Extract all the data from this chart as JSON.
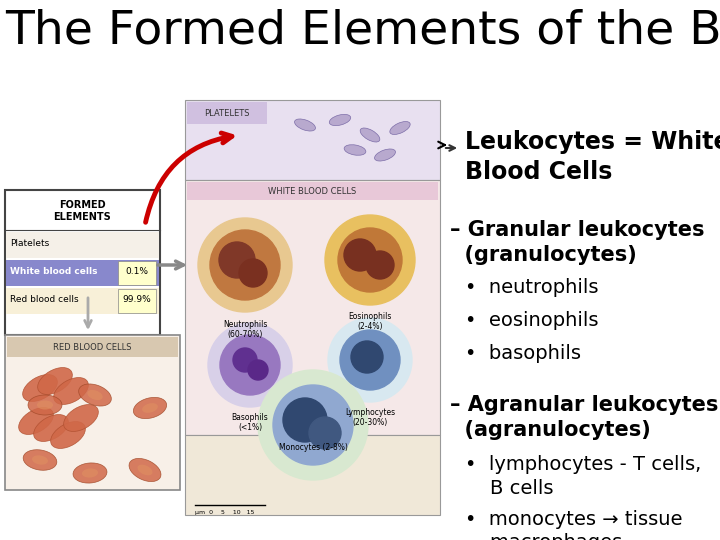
{
  "title": "The Formed Elements of the Blood:",
  "title_fontsize": 34,
  "bg_color": "#ffffff",
  "text_color": "#000000",
  "leuko_header": "Leukocytes = White\nBlood Cells",
  "leuko_header_fontsize": 17,
  "section1_header": "– Granular leukocytes\n  (granulocytes)",
  "section1_bullets": [
    "neutrophils",
    "eosinophils",
    "basophils"
  ],
  "section2_header": "– Agranular leukocytes\n  (agranulocytes)",
  "section2_bullets": [
    "lymphocytes - T cells,\n    B cells",
    "monocytes → tissue\n    macrophages"
  ],
  "section_fontsize": 15,
  "bullet_fontsize": 14,
  "arrow_color": "#cc0000"
}
